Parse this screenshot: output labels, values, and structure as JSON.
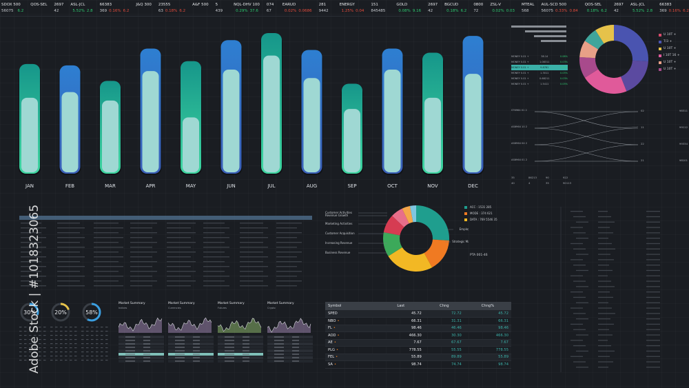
{
  "ticker": [
    {
      "name": "SDOX 500",
      "a": "56075",
      "b": "59",
      "c": "",
      "d": "6.2",
      "dir": "up"
    },
    {
      "name": "QOS-SEL",
      "a": "",
      "b": "",
      "c": "",
      "d": "",
      "dir": "up"
    },
    {
      "name": "2697",
      "a": "42",
      "b": "",
      "c": "",
      "d": "",
      "dir": "up"
    },
    {
      "name": "ASL-JCL",
      "a": "",
      "b": "",
      "c": "5.52%",
      "d": "2.8",
      "dir": "up"
    },
    {
      "name": "66383",
      "a": "369",
      "b": "",
      "c": "0.16%",
      "d": "6.2",
      "dir": "dn"
    },
    {
      "name": "J&Q 300",
      "a": "",
      "b": "",
      "c": "",
      "d": "",
      "dir": "up"
    },
    {
      "name": "23555",
      "a": "63",
      "b": "",
      "c": "0.18%",
      "d": "6.2",
      "dir": "dn"
    },
    {
      "name": "A&F 500",
      "a": "",
      "b": "",
      "c": "",
      "d": "",
      "dir": "up"
    },
    {
      "name": "5",
      "a": "439",
      "b": "13",
      "c": "",
      "d": "",
      "dir": "up"
    },
    {
      "name": "NQL-DHV 100",
      "a": "",
      "b": "",
      "c": "0.29%",
      "d": "37.6",
      "dir": "up"
    },
    {
      "name": "074",
      "a": "67",
      "b": "",
      "c": "",
      "d": "",
      "dir": "up"
    },
    {
      "name": "EARUD",
      "a": "",
      "b": "",
      "c": "0.02%",
      "d": "0.0686",
      "dir": "dn"
    },
    {
      "name": "281",
      "a": "9442",
      "b": "",
      "c": "",
      "d": "",
      "dir": "up"
    },
    {
      "name": "ENERGY",
      "a": "",
      "b": "",
      "c": "1.25%",
      "d": "0.04",
      "dir": "dn"
    },
    {
      "name": "151",
      "a": "845485",
      "b": "",
      "c": "",
      "d": "",
      "dir": "up"
    },
    {
      "name": "GOLD",
      "a": "",
      "b": "",
      "c": "0.08%",
      "d": "9.16",
      "dir": "up"
    },
    {
      "name": "2697",
      "a": "42",
      "b": "",
      "c": "",
      "d": "",
      "dir": "up"
    },
    {
      "name": "BGCUD",
      "a": "",
      "b": "",
      "c": "0.18%",
      "d": "6.2",
      "dir": "up"
    },
    {
      "name": "0800",
      "a": "72",
      "b": "",
      "c": "",
      "d": "",
      "dir": "up"
    },
    {
      "name": "ZSL-V",
      "a": "",
      "b": "",
      "c": "0.02%",
      "d": "0.03",
      "dir": "up"
    },
    {
      "name": "MTEAL",
      "a": "568",
      "b": "442",
      "c": "",
      "d": "",
      "dir": "up"
    },
    {
      "name": "AUL-SCD 500",
      "a": "56075",
      "b": "59",
      "c": "0.33%",
      "d": "0.84",
      "dir": "dn"
    },
    {
      "name": "QOS-SEL",
      "a": "",
      "b": "",
      "c": "0.18%",
      "d": "6.2",
      "dir": "up"
    },
    {
      "name": "2697",
      "a": "42",
      "b": "",
      "c": "",
      "d": "",
      "dir": "up"
    },
    {
      "name": "ASL-JCL",
      "a": "",
      "b": "",
      "c": "5.52%",
      "d": "2.8",
      "dir": "up"
    },
    {
      "name": "66383",
      "a": "369",
      "b": "",
      "c": "0.16%",
      "d": "6.2",
      "dir": "dn"
    },
    {
      "name": "J&Q 300",
      "a": "",
      "b": "",
      "c": "",
      "d": "",
      "dir": "up"
    },
    {
      "name": "23555",
      "a": "63",
      "b": "",
      "c": "0.18%",
      "d": "6.2",
      "dir": "dn"
    },
    {
      "name": "A&F 500",
      "a": "",
      "b": "",
      "c": "",
      "d": "",
      "dir": "up"
    },
    {
      "name": "5",
      "a": "439",
      "b": "13",
      "c": "",
      "d": "",
      "dir": "up"
    },
    {
      "name": "NQL-DHV 100",
      "a": "",
      "b": "",
      "c": "0.29%",
      "d": "37.6",
      "dir": "up"
    }
  ],
  "chart_data": [
    {
      "type": "bar",
      "categories": [
        "JAN",
        "FEB",
        "MAR",
        "APR",
        "MAY",
        "JUN",
        "JUL",
        "AUG",
        "SEP",
        "OCT",
        "NOV",
        "DEC"
      ],
      "series": [
        {
          "values": [
            78,
            77,
            66,
            89,
            80,
            95,
            100,
            88,
            64,
            89,
            86,
            98
          ],
          "color_top": "#1f8e86",
          "color_alt": "#2f6fc2"
        },
        {
          "values": [
            54,
            58,
            52,
            73,
            40,
            74,
            84,
            68,
            46,
            74,
            54,
            71
          ],
          "color": "#9fd8d3"
        }
      ],
      "ylim": [
        0,
        100
      ]
    },
    {
      "type": "pie",
      "labels": [
        "",
        "",
        "",
        "",
        "",
        "",
        ""
      ],
      "values": [
        26,
        18,
        22,
        10,
        8,
        7,
        9
      ],
      "colors": [
        "#4a54b0",
        "#5b4aa0",
        "#e05a9a",
        "#a84a8c",
        "#e8a087",
        "#3fa59b",
        "#e6c24a"
      ]
    },
    {
      "type": "pie",
      "labels": [
        "Customer Activities",
        "Revenue Growth",
        "Marketing Activities",
        "Customer Acquisition",
        "Increasing Revenue",
        "Business Revenue",
        "Employee Activities",
        "Strategic Management"
      ],
      "values": [
        26,
        16,
        24,
        12,
        9,
        6,
        4,
        3
      ],
      "colors": [
        "#1f9e8e",
        "#f07a22",
        "#f2b824",
        "#3ca95a",
        "#d63c52",
        "#e86e8a",
        "#f4a64a",
        "#7fc6e0"
      ]
    }
  ],
  "legend_top": [
    {
      "label": "U 10T +",
      "color": "#d64a6a"
    },
    {
      "label": "T/3 +",
      "color": "#4a54b0"
    },
    {
      "label": "U 10T +",
      "color": "#e6c24a"
    },
    {
      "label": "I 10T 16 +",
      "color": "#e05a9a"
    },
    {
      "label": "U 10T +",
      "color": "#e8a087"
    },
    {
      "label": "U 10T +",
      "color": "#a84a8c"
    }
  ],
  "money_rows": [
    {
      "label": "MONEY 0.01 +",
      "v1": "38.14",
      "v2": "0.08%"
    },
    {
      "label": "MONEY 0.01 +",
      "v1": "1.08311",
      "v2": "0.03%"
    },
    {
      "label": "MONEY 0.01 +",
      "v1": "9.8781",
      "v2": "0.03%"
    },
    {
      "label": "MONEY 0.01 +",
      "v1": "1.3011",
      "v2": "0.03%"
    },
    {
      "label": "MONEY 0.01 +",
      "v1": "0.68211",
      "v2": "0.03%"
    },
    {
      "label": "MONEY 0.01 +",
      "v1": "1.5411",
      "v2": "0.03%"
    }
  ],
  "links_left": [
    "ST6964  01  2",
    "AS6964  10  2",
    "AS6964  04  2",
    "AS6964  01  2"
  ],
  "links_right": [
    {
      "n": "02",
      "code": "98311"
    },
    {
      "n": "11",
      "code": "99112"
    },
    {
      "n": "22",
      "code": "99334"
    },
    {
      "n": "21",
      "code": "98101"
    }
  ],
  "link_extra": [
    "35",
    "86213",
    "90",
    "922",
    "40",
    "4",
    "35",
    "90113"
  ],
  "donut2_legend": [
    {
      "label": "ACC : 1531 285",
      "color": "#1f9e8e"
    },
    {
      "label": "MODE : 374 621",
      "color": "#f07a22"
    },
    {
      "label": "DATA : 769 5546 35",
      "color": "#f2b824"
    }
  ],
  "pta": "PTA 001-46",
  "gauges": [
    {
      "value": 30,
      "label": "30%",
      "color": "#3a9ee0"
    },
    {
      "value": 20,
      "label": "20%",
      "color": "#e6c24a"
    },
    {
      "value": 58,
      "label": "58%",
      "color": "#3a9ee0"
    }
  ],
  "market_summary": [
    {
      "title": "Market Summary",
      "sub": "Indices"
    },
    {
      "title": "Market Summary",
      "sub": "Currencies"
    },
    {
      "title": "Market Summary",
      "sub": "Futures"
    },
    {
      "title": "Market Summary",
      "sub": "Crypto"
    }
  ],
  "symbol_table": {
    "headers": [
      "Symbol",
      "Last",
      "Chng",
      "Chng%"
    ],
    "rows": [
      {
        "sym": "SPED",
        "last": "45.72",
        "chg": "72.72",
        "pct": "45.72",
        "mark": ""
      },
      {
        "sym": "NBO",
        "last": "66.31",
        "chg": "31.31",
        "pct": "66.31",
        "mark": "•"
      },
      {
        "sym": "FL",
        "last": "98.46",
        "chg": "46.46",
        "pct": "98.46",
        "mark": "•"
      },
      {
        "sym": "AOD",
        "last": "466.30",
        "chg": "30.30",
        "pct": "466.30",
        "mark": "•"
      },
      {
        "sym": "AE",
        "last": "7.67",
        "chg": "67.67",
        "pct": "7.67",
        "mark": "•"
      },
      {
        "sym": "PLG",
        "last": "778.55",
        "chg": "55.55",
        "pct": "778.55",
        "mark": "•"
      },
      {
        "sym": "FEL",
        "last": "55.89",
        "chg": "89.89",
        "pct": "55.89",
        "mark": "•"
      },
      {
        "sym": "SA",
        "last": "98.74",
        "chg": "74.74",
        "pct": "98.74",
        "mark": "•"
      }
    ]
  },
  "watermark": "Adobe Stock | #1018323065",
  "colors": {
    "bg": "#1a1d22",
    "teal": "#1f9e8e",
    "blue": "#2f6fc2",
    "mint": "#9fd8d3"
  }
}
